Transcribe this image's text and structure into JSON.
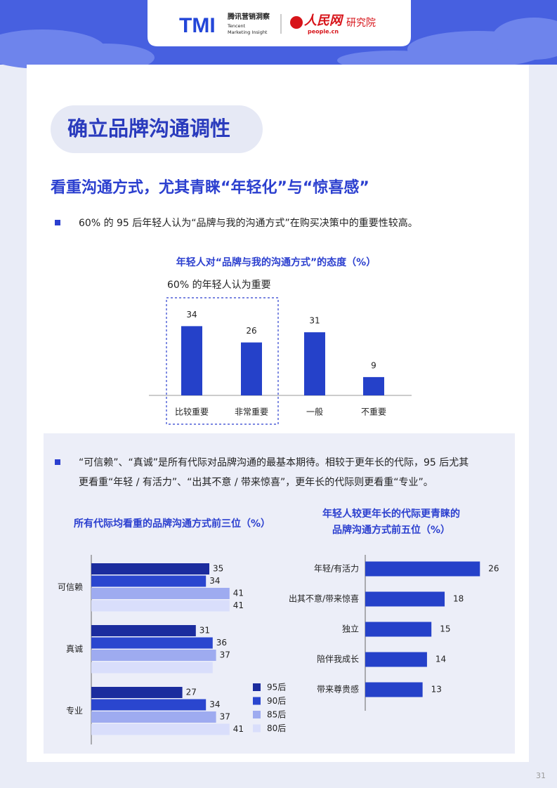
{
  "header": {
    "logo_mark": "TMI",
    "logo_cn": "腾讯营销洞察",
    "logo_en_1": "Tencent",
    "logo_en_2": "Marketing Insight",
    "partner": "人民网",
    "partner_url": "people.cn",
    "partner_unit": "研究院"
  },
  "section_title": "确立品牌沟通调性",
  "heading": "看重沟通方式，尤其青睐“年轻化”与“惊喜感”",
  "bullets": [
    {
      "lines": [
        "60% 的 95 后年轻人认为“品牌与我的沟通方式”在购买决策中的重要性较高。"
      ]
    },
    {
      "lines": [
        "“可信赖”、“真诚”是所有代际对品牌沟通的最基本期待。相较于更年长的代际，95 后尤其",
        "更看重“年轻 / 有活力”、“出其不意 / 带来惊喜”，更年长的代际则更看重“专业”。"
      ]
    }
  ],
  "page_number": "31",
  "chart_data": [
    {
      "type": "bar",
      "title": "年轻人对“品牌与我的沟通方式”的态度（%）",
      "annotation": "60% 的年轻人认为重要",
      "categories": [
        "比较重要",
        "非常重要",
        "一般",
        "不重要"
      ],
      "values": [
        34,
        26,
        31,
        9
      ],
      "color": "#2541c9",
      "ylim": [
        0,
        40
      ]
    },
    {
      "type": "bar",
      "orientation": "horizontal",
      "title": [
        "所有代际均看重的品牌沟通方式前三位（%）"
      ],
      "categories": [
        "可信赖",
        "真诚",
        "专业"
      ],
      "series": [
        {
          "name": "95后",
          "color": "#1b2c9e",
          "values": [
            35,
            31,
            27
          ]
        },
        {
          "name": "90后",
          "color": "#2a46cf",
          "values": [
            34,
            36,
            34
          ]
        },
        {
          "name": "85后",
          "color": "#9eabf0",
          "values": [
            41,
            37,
            37
          ]
        },
        {
          "name": "80后",
          "color": "#d9defb",
          "values": [
            41,
            36,
            41
          ],
          "value_labels": [
            "41",
            null,
            "41"
          ]
        }
      ],
      "xlim": [
        0,
        50
      ],
      "legend": "bottom-right"
    },
    {
      "type": "bar",
      "orientation": "horizontal",
      "title": [
        "年轻人较更年长的代际更青睐的",
        "品牌沟通方式前五位（%）"
      ],
      "categories": [
        "年轻/有活力",
        "出其不意/带来惊喜",
        "独立",
        "陪伴我成长",
        "带来尊贵感"
      ],
      "values": [
        26,
        18,
        15,
        14,
        13
      ],
      "color": "#2541c9",
      "xlim": [
        0,
        30
      ]
    }
  ]
}
